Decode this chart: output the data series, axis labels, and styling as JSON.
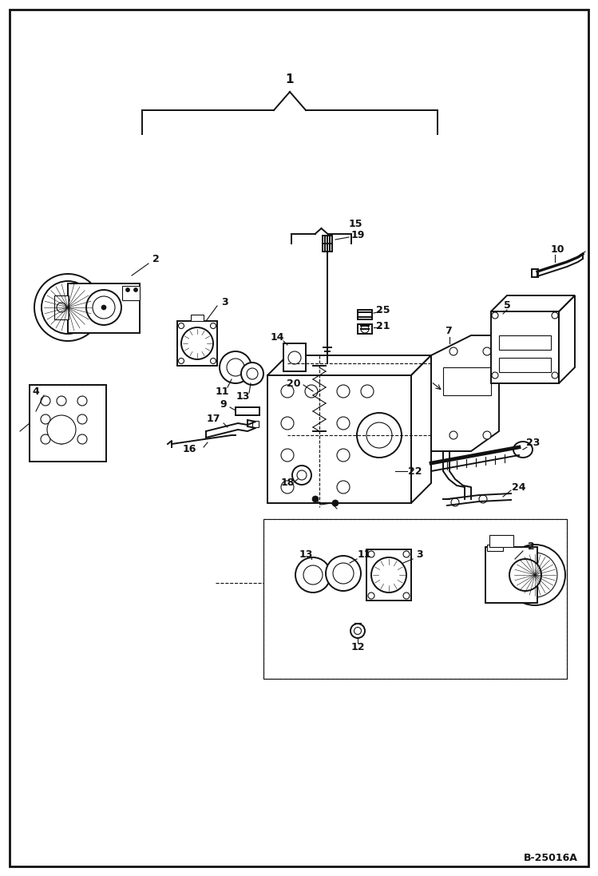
{
  "bg_color": "#ffffff",
  "border_color": "#111111",
  "line_color": "#111111",
  "watermark": "B-25016A",
  "fig_w": 7.49,
  "fig_h": 10.97,
  "dpi": 100,
  "lw_main": 1.4,
  "lw_thin": 0.8,
  "lw_border": 2.0
}
